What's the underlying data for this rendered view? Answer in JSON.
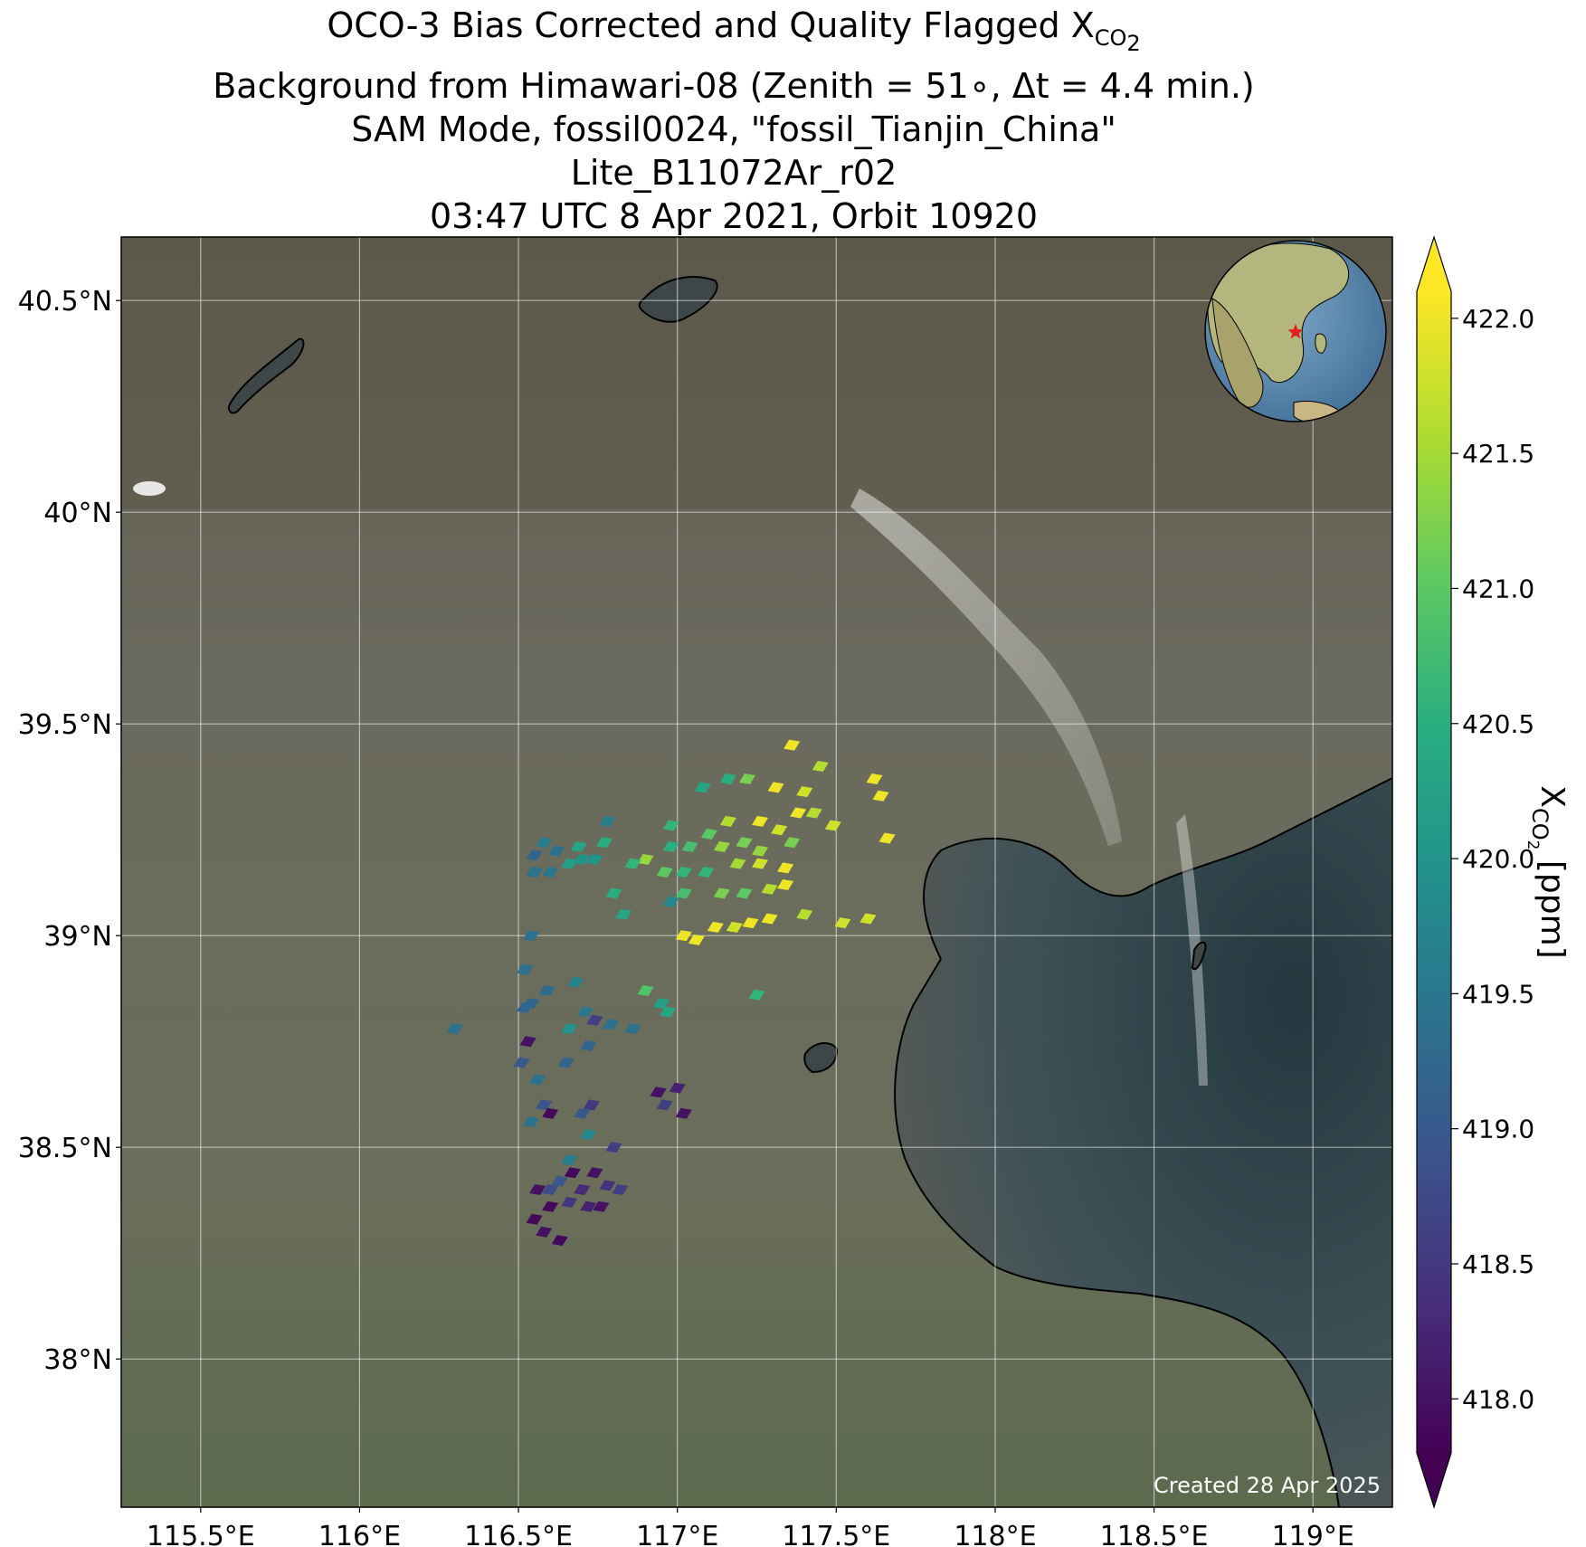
{
  "title": {
    "line1_main": "OCO-3 Bias Corrected and Quality Flagged X",
    "line1_sub": "CO",
    "line1_sub2": "2",
    "line2": "Background from Himawari-08 (Zenith = 51∘, Δt =  4.4 min.)",
    "line3": "SAM Mode, fossil0024, \"fossil_Tianjin_China\"",
    "line4": "Lite_B11072Ar_r02",
    "line5": "03:47 UTC 8 Apr 2021, Orbit 10920"
  },
  "map": {
    "lon_range": [
      115.25,
      119.25
    ],
    "lat_range": [
      37.65,
      40.65
    ],
    "lon_ticks": [
      {
        "value": 115.5,
        "label": "115.5°E"
      },
      {
        "value": 116.0,
        "label": "116°E"
      },
      {
        "value": 116.5,
        "label": "116.5°E"
      },
      {
        "value": 117.0,
        "label": "117°E"
      },
      {
        "value": 117.5,
        "label": "117.5°E"
      },
      {
        "value": 118.0,
        "label": "118°E"
      },
      {
        "value": 118.5,
        "label": "118.5°E"
      },
      {
        "value": 119.0,
        "label": "119°E"
      }
    ],
    "lat_ticks": [
      {
        "value": 40.5,
        "label": "40.5°N"
      },
      {
        "value": 40.0,
        "label": "40°N"
      },
      {
        "value": 39.5,
        "label": "39.5°N"
      },
      {
        "value": 39.0,
        "label": "39°N"
      },
      {
        "value": 38.5,
        "label": "38.5°N"
      },
      {
        "value": 38.0,
        "label": "38°N"
      }
    ],
    "gridlines": true,
    "inset_globe": "globe-icon with target-star",
    "credit": "Created 28 Apr 2025",
    "colors": {
      "land": "#6e6a5b",
      "sea": "#3c4d52",
      "coast": "#000000"
    }
  },
  "colorbar": {
    "min": 417.8,
    "max": 422.1,
    "colormap": "viridis",
    "extend": "both",
    "ticks": [
      {
        "value": 418.0,
        "label": "418.0"
      },
      {
        "value": 418.5,
        "label": "418.5"
      },
      {
        "value": 419.0,
        "label": "419.0"
      },
      {
        "value": 419.5,
        "label": "419.5"
      },
      {
        "value": 420.0,
        "label": "420.0"
      },
      {
        "value": 420.5,
        "label": "420.5"
      },
      {
        "value": 421.0,
        "label": "421.0"
      },
      {
        "value": 421.5,
        "label": "421.5"
      },
      {
        "value": 422.0,
        "label": "422.0"
      }
    ],
    "label_main": "X",
    "label_sub": "CO",
    "label_sub2": "2",
    "label_unit": " [ppm]"
  },
  "soundings": [
    [
      117.36,
      39.45,
      422.0
    ],
    [
      117.45,
      39.4,
      421.6
    ],
    [
      117.62,
      39.37,
      422.0
    ],
    [
      117.64,
      39.33,
      422.0
    ],
    [
      117.31,
      39.35,
      422.0
    ],
    [
      117.4,
      39.34,
      421.8
    ],
    [
      117.22,
      39.37,
      421.2
    ],
    [
      117.16,
      39.37,
      420.5
    ],
    [
      117.08,
      39.35,
      420.3
    ],
    [
      116.78,
      39.27,
      419.6
    ],
    [
      116.98,
      39.26,
      420.6
    ],
    [
      117.1,
      39.24,
      421.0
    ],
    [
      117.16,
      39.27,
      421.6
    ],
    [
      117.26,
      39.27,
      422.0
    ],
    [
      117.32,
      39.25,
      421.8
    ],
    [
      117.38,
      39.29,
      422.0
    ],
    [
      117.43,
      39.29,
      421.6
    ],
    [
      117.49,
      39.26,
      421.8
    ],
    [
      117.66,
      39.23,
      422.0
    ],
    [
      117.36,
      39.22,
      421.2
    ],
    [
      117.26,
      39.2,
      421.4
    ],
    [
      117.21,
      39.22,
      421.2
    ],
    [
      117.14,
      39.21,
      421.4
    ],
    [
      117.04,
      39.21,
      420.8
    ],
    [
      116.98,
      39.21,
      420.5
    ],
    [
      116.9,
      39.18,
      421.4
    ],
    [
      116.86,
      39.17,
      420.6
    ],
    [
      116.96,
      39.15,
      421.0
    ],
    [
      117.02,
      39.15,
      420.6
    ],
    [
      117.09,
      39.15,
      420.6
    ],
    [
      117.19,
      39.17,
      421.5
    ],
    [
      117.26,
      39.17,
      421.8
    ],
    [
      117.34,
      39.12,
      422.0
    ],
    [
      117.34,
      39.16,
      422.0
    ],
    [
      117.29,
      39.11,
      421.6
    ],
    [
      117.21,
      39.1,
      421.0
    ],
    [
      117.14,
      39.1,
      421.2
    ],
    [
      117.02,
      39.1,
      420.8
    ],
    [
      116.98,
      39.08,
      419.8
    ],
    [
      116.83,
      39.05,
      420.3
    ],
    [
      116.8,
      39.1,
      420.5
    ],
    [
      116.69,
      39.21,
      420.3
    ],
    [
      116.74,
      39.18,
      420.0
    ],
    [
      116.62,
      39.2,
      419.4
    ],
    [
      116.58,
      39.22,
      419.6
    ],
    [
      116.55,
      39.19,
      419.2
    ],
    [
      116.55,
      39.15,
      419.4
    ],
    [
      116.6,
      39.15,
      419.5
    ],
    [
      116.66,
      39.17,
      420.2
    ],
    [
      116.7,
      39.18,
      420.0
    ],
    [
      116.77,
      39.22,
      420.5
    ],
    [
      117.02,
      39.0,
      422.0
    ],
    [
      117.06,
      38.99,
      422.0
    ],
    [
      117.12,
      39.02,
      422.0
    ],
    [
      117.18,
      39.02,
      421.8
    ],
    [
      117.23,
      39.03,
      422.0
    ],
    [
      117.29,
      39.04,
      422.0
    ],
    [
      117.4,
      39.05,
      421.6
    ],
    [
      117.52,
      39.03,
      421.8
    ],
    [
      117.6,
      39.04,
      421.8
    ],
    [
      116.54,
      39.0,
      419.4
    ],
    [
      116.52,
      38.92,
      419.4
    ],
    [
      116.59,
      38.87,
      419.3
    ],
    [
      116.68,
      38.89,
      419.7
    ],
    [
      116.71,
      38.82,
      419.5
    ],
    [
      116.74,
      38.8,
      418.6
    ],
    [
      116.66,
      38.78,
      420.0
    ],
    [
      116.72,
      38.74,
      419.2
    ],
    [
      116.79,
      38.79,
      419.4
    ],
    [
      116.86,
      38.78,
      419.4
    ],
    [
      116.9,
      38.87,
      420.9
    ],
    [
      116.95,
      38.84,
      420.2
    ],
    [
      116.97,
      38.82,
      420.3
    ],
    [
      117.25,
      38.86,
      420.6
    ],
    [
      116.52,
      38.83,
      419.2
    ],
    [
      116.54,
      38.84,
      419.2
    ],
    [
      116.3,
      38.78,
      419.4
    ],
    [
      116.53,
      38.75,
      418.0
    ],
    [
      116.51,
      38.7,
      419.0
    ],
    [
      116.65,
      38.7,
      419.2
    ],
    [
      116.56,
      38.66,
      419.4
    ],
    [
      116.58,
      38.6,
      418.9
    ],
    [
      116.54,
      38.56,
      419.4
    ],
    [
      116.6,
      38.58,
      417.9
    ],
    [
      116.73,
      38.6,
      418.5
    ],
    [
      116.7,
      38.58,
      419.0
    ],
    [
      116.72,
      38.53,
      419.8
    ],
    [
      116.8,
      38.5,
      418.6
    ],
    [
      116.94,
      38.63,
      418.0
    ],
    [
      117.0,
      38.64,
      418.2
    ],
    [
      116.96,
      38.6,
      418.6
    ],
    [
      117.02,
      38.58,
      418.0
    ],
    [
      116.66,
      38.47,
      419.6
    ],
    [
      116.63,
      38.42,
      419.0
    ],
    [
      116.56,
      38.4,
      418.0
    ],
    [
      116.6,
      38.36,
      417.9
    ],
    [
      116.67,
      38.44,
      417.9
    ],
    [
      116.74,
      38.44,
      418.0
    ],
    [
      116.7,
      38.4,
      418.3
    ],
    [
      116.72,
      38.36,
      418.2
    ],
    [
      116.76,
      38.36,
      418.0
    ],
    [
      116.78,
      38.41,
      418.4
    ],
    [
      116.82,
      38.4,
      418.6
    ],
    [
      116.58,
      38.3,
      418.0
    ],
    [
      116.63,
      38.28,
      417.9
    ],
    [
      116.66,
      38.37,
      418.5
    ],
    [
      116.6,
      38.4,
      418.8
    ],
    [
      116.55,
      38.33,
      417.9
    ]
  ]
}
